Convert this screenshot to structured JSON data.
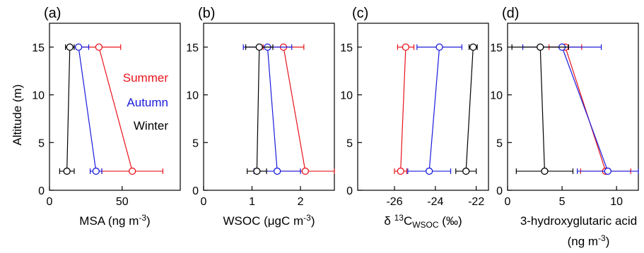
{
  "colors": {
    "summer": "#e8141c",
    "autumn": "#1a1adc",
    "winter": "#000000"
  },
  "shared_ylabel": "Altitude (m)",
  "legend": [
    {
      "label": "Summer",
      "color": "#e8141c"
    },
    {
      "label": "Autumn",
      "color": "#1a1adc"
    },
    {
      "label": "Winter",
      "color": "#000000"
    }
  ],
  "chart_data": [
    {
      "type": "line",
      "panel_label": "(a)",
      "xlabel": "MSA (ng m-3)",
      "xlabel_parts": [
        {
          "t": "MSA (ng m"
        },
        {
          "t": "-3",
          "sup": true
        },
        {
          "t": ")"
        }
      ],
      "ylabel": "Altitude (m)",
      "xlim": [
        0,
        90
      ],
      "xticks": [
        0,
        50
      ],
      "ylim": [
        0,
        17.5
      ],
      "yticks": [
        0,
        5,
        10,
        15
      ],
      "series": [
        {
          "name": "Summer",
          "color": "#e8141c",
          "points": [
            {
              "x": 57,
              "y": 2,
              "xerr": 21
            },
            {
              "x": 34,
              "y": 15,
              "xerr": 15
            }
          ]
        },
        {
          "name": "Autumn",
          "color": "#1a1adc",
          "points": [
            {
              "x": 32,
              "y": 2,
              "xerr": 4
            },
            {
              "x": 20,
              "y": 15,
              "xerr": 7
            }
          ]
        },
        {
          "name": "Winter",
          "color": "#000000",
          "points": [
            {
              "x": 12,
              "y": 2,
              "xerr": 5
            },
            {
              "x": 14,
              "y": 15,
              "xerr": 3
            }
          ]
        }
      ]
    },
    {
      "type": "line",
      "panel_label": "(b)",
      "xlabel": "WSOC (µgC m-3)",
      "xlabel_parts": [
        {
          "t": "WSOC ("
        },
        {
          "t": "μ"
        },
        {
          "t": "gC m"
        },
        {
          "t": "-3",
          "sup": true
        },
        {
          "t": ")"
        }
      ],
      "xlim": [
        0,
        2.7
      ],
      "xticks": [
        0,
        1,
        2
      ],
      "ylim": [
        0,
        17.5
      ],
      "yticks": [
        0,
        5,
        10,
        15
      ],
      "series": [
        {
          "name": "Summer",
          "color": "#e8141c",
          "points": [
            {
              "x": 2.1,
              "y": 2,
              "xerr": 0.6
            },
            {
              "x": 1.65,
              "y": 15,
              "xerr": 0.42
            }
          ]
        },
        {
          "name": "Autumn",
          "color": "#1a1adc",
          "points": [
            {
              "x": 1.52,
              "y": 2,
              "xerr": 0.48
            },
            {
              "x": 1.32,
              "y": 15,
              "xerr": 0.5
            }
          ]
        },
        {
          "name": "Winter",
          "color": "#000000",
          "points": [
            {
              "x": 1.1,
              "y": 2,
              "xerr": 0.2
            },
            {
              "x": 1.15,
              "y": 15,
              "xerr": 0.28
            }
          ]
        }
      ]
    },
    {
      "type": "line",
      "panel_label": "(c)",
      "xlabel": "δ 13CWSOC (‰)",
      "xlabel_parts": [
        {
          "t": "δ "
        },
        {
          "t": "13",
          "sup": true
        },
        {
          "t": "C"
        },
        {
          "t": "WSOC",
          "sub": true
        },
        {
          "t": " (‰)"
        }
      ],
      "xlim": [
        -27.8,
        -21.4
      ],
      "xticks": [
        -26,
        -24,
        -22
      ],
      "ylim": [
        0,
        17.5
      ],
      "yticks": [
        0,
        5,
        10,
        15
      ],
      "series": [
        {
          "name": "Summer",
          "color": "#e8141c",
          "points": [
            {
              "x": -25.7,
              "y": 2,
              "xerr": 0.3
            },
            {
              "x": -25.45,
              "y": 15,
              "xerr": 0.4
            }
          ]
        },
        {
          "name": "Autumn",
          "color": "#1a1adc",
          "points": [
            {
              "x": -24.3,
              "y": 2,
              "xerr": 1.05
            },
            {
              "x": -23.8,
              "y": 15,
              "xerr": 1.1
            }
          ]
        },
        {
          "name": "Winter",
          "color": "#000000",
          "points": [
            {
              "x": -22.5,
              "y": 2,
              "xerr": 0.5
            },
            {
              "x": -22.15,
              "y": 15,
              "xerr": 0.2
            }
          ]
        }
      ]
    },
    {
      "type": "line",
      "panel_label": "(d)",
      "xlabel": "3-hydroxyglutaric acid (ng m-3)",
      "xlabel_parts": [
        {
          "t": "3-hydroxyglutaric acid"
        }
      ],
      "xlabel_line2_parts": [
        {
          "t": "(ng m"
        },
        {
          "t": "-3",
          "sup": true
        },
        {
          "t": ")"
        }
      ],
      "xlim": [
        0,
        12
      ],
      "xticks": [
        0,
        5,
        10
      ],
      "ylim": [
        0,
        17.5
      ],
      "yticks": [
        0,
        5,
        10,
        15
      ],
      "series": [
        {
          "name": "Summer",
          "color": "#e8141c",
          "points": [
            {
              "x": 9.0,
              "y": 2,
              "xerr": 2.3
            },
            {
              "x": 5.3,
              "y": 15,
              "xerr": 1.5
            }
          ]
        },
        {
          "name": "Autumn",
          "color": "#1a1adc",
          "points": [
            {
              "x": 9.2,
              "y": 2,
              "xerr": 2.8
            },
            {
              "x": 5.0,
              "y": 15,
              "xerr": 3.6
            }
          ]
        },
        {
          "name": "Winter",
          "color": "#000000",
          "points": [
            {
              "x": 3.4,
              "y": 2,
              "xerr": 2.6
            },
            {
              "x": 3.0,
              "y": 15,
              "xerr": 2.6
            }
          ]
        }
      ]
    }
  ]
}
